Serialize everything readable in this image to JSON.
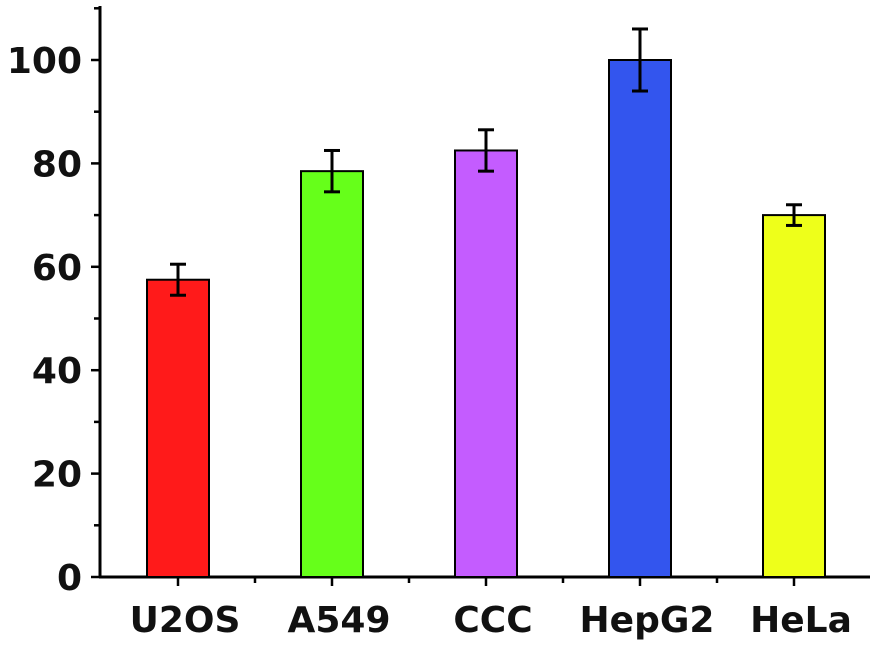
{
  "chart_data": {
    "type": "bar",
    "title": "",
    "xlabel": "",
    "ylabel": "",
    "categories": [
      "U2OS",
      "A549",
      "CCC",
      "HepG2",
      "HeLa"
    ],
    "values": [
      57.5,
      78.5,
      82.5,
      100,
      70
    ],
    "errors": [
      3,
      4,
      4,
      6,
      2
    ],
    "colors": [
      "#ff1a1a",
      "#66ff1a",
      "#c45cff",
      "#3355ee",
      "#eeff1a"
    ],
    "ylim": [
      0,
      110
    ],
    "yticks": [
      0,
      20,
      40,
      60,
      80,
      100
    ],
    "ytick_labels": [
      "0",
      "20",
      "40",
      "60",
      "80",
      "100"
    ],
    "grid": false,
    "legend": "none"
  }
}
